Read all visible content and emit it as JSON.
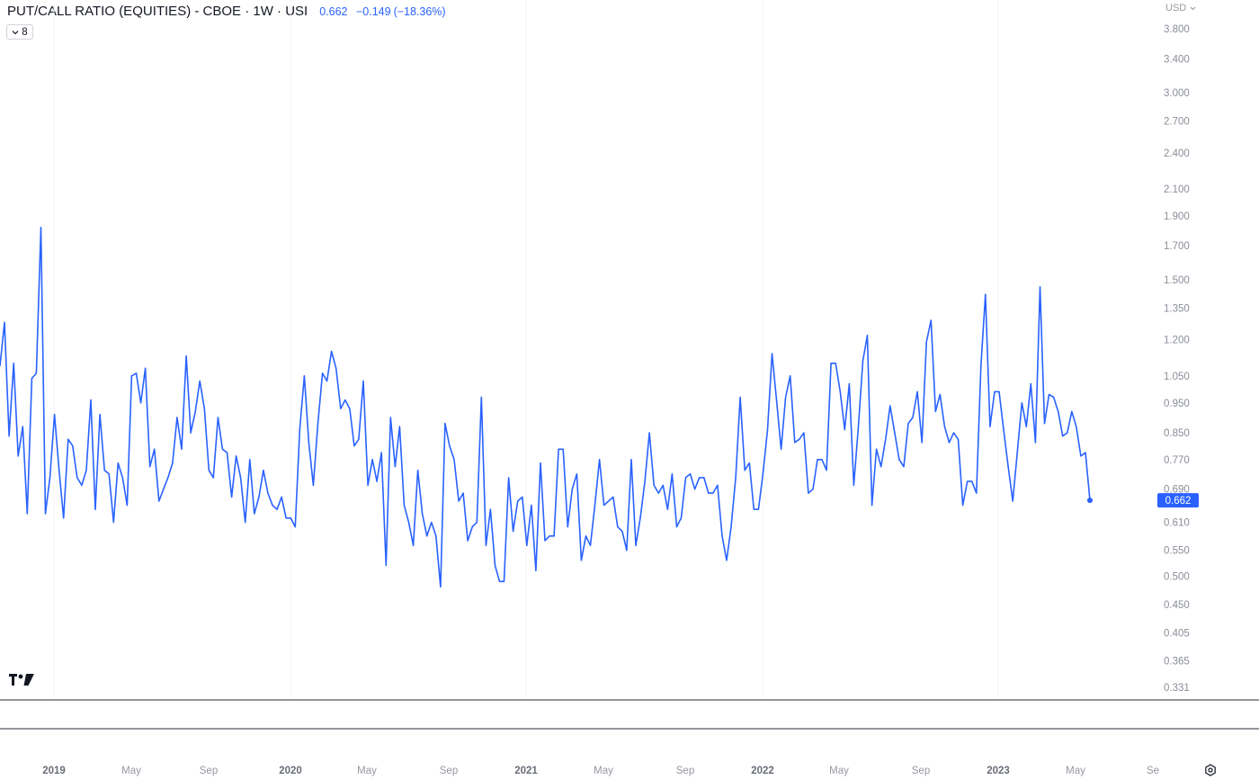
{
  "header": {
    "title": "PUT/CALL RATIO (EQUITIES) - CBOE · 1W · USI",
    "last": "0.662",
    "change": "−0.149",
    "change_pct": "(−18.36%)",
    "indicator_count": "8",
    "currency": "USD"
  },
  "colors": {
    "line": "#2962ff",
    "accent": "#2962ff"
  },
  "icons": {
    "logo": "tradingview-logo-icon",
    "settings": "settings-gear-icon",
    "dropdown": "chevron-down-icon"
  },
  "chart_data": {
    "type": "line",
    "title": "PUT/CALL RATIO (EQUITIES) - CBOE · 1W · USI",
    "scale": "log",
    "ylim": [
      0.315,
      4.0
    ],
    "y_ticks": [
      "3.800",
      "3.400",
      "3.000",
      "2.700",
      "2.400",
      "2.100",
      "1.900",
      "1.700",
      "1.500",
      "1.350",
      "1.200",
      "1.050",
      "0.950",
      "0.850",
      "0.770",
      "0.690",
      "0.610",
      "0.550",
      "0.500",
      "0.450",
      "0.405",
      "0.365",
      "0.331"
    ],
    "x_ticks": [
      {
        "label": "2019",
        "year": true
      },
      {
        "label": "May",
        "year": false
      },
      {
        "label": "Sep",
        "year": false
      },
      {
        "label": "2020",
        "year": true
      },
      {
        "label": "May",
        "year": false
      },
      {
        "label": "Sep",
        "year": false
      },
      {
        "label": "2021",
        "year": true
      },
      {
        "label": "May",
        "year": false
      },
      {
        "label": "Sep",
        "year": false
      },
      {
        "label": "2022",
        "year": true
      },
      {
        "label": "May",
        "year": false
      },
      {
        "label": "Sep",
        "year": false
      },
      {
        "label": "2023",
        "year": true
      },
      {
        "label": "May",
        "year": false
      },
      {
        "label": "Se",
        "year": false
      }
    ],
    "last_value": "0.662",
    "series": [
      {
        "values": [
          1.09,
          1.28,
          0.84,
          1.1,
          0.78,
          0.87,
          0.63,
          1.04,
          1.06,
          1.82,
          0.63,
          0.72,
          0.91,
          0.74,
          0.62,
          0.83,
          0.81,
          0.72,
          0.7,
          0.74,
          0.96,
          0.64,
          0.91,
          0.74,
          0.73,
          0.61,
          0.76,
          0.72,
          0.65,
          1.05,
          1.06,
          0.95,
          1.08,
          0.75,
          0.8,
          0.66,
          0.69,
          0.72,
          0.76,
          0.9,
          0.8,
          1.13,
          0.85,
          0.92,
          1.03,
          0.93,
          0.74,
          0.72,
          0.9,
          0.8,
          0.79,
          0.67,
          0.78,
          0.72,
          0.61,
          0.77,
          0.63,
          0.67,
          0.74,
          0.68,
          0.65,
          0.64,
          0.67,
          0.62,
          0.62,
          0.6,
          0.86,
          1.05,
          0.82,
          0.7,
          0.88,
          1.06,
          1.03,
          1.15,
          1.08,
          0.93,
          0.96,
          0.93,
          0.81,
          0.83,
          1.03,
          0.7,
          0.77,
          0.71,
          0.79,
          0.52,
          0.9,
          0.75,
          0.87,
          0.65,
          0.61,
          0.56,
          0.74,
          0.63,
          0.58,
          0.61,
          0.58,
          0.48,
          0.88,
          0.81,
          0.77,
          0.66,
          0.68,
          0.57,
          0.6,
          0.61,
          0.97,
          0.56,
          0.64,
          0.52,
          0.49,
          0.49,
          0.72,
          0.59,
          0.66,
          0.67,
          0.56,
          0.65,
          0.51,
          0.76,
          0.57,
          0.58,
          0.58,
          0.8,
          0.8,
          0.6,
          0.69,
          0.73,
          0.53,
          0.58,
          0.56,
          0.65,
          0.77,
          0.65,
          0.66,
          0.67,
          0.6,
          0.59,
          0.55,
          0.77,
          0.56,
          0.62,
          0.71,
          0.85,
          0.7,
          0.68,
          0.7,
          0.64,
          0.73,
          0.6,
          0.62,
          0.72,
          0.73,
          0.69,
          0.72,
          0.72,
          0.68,
          0.68,
          0.7,
          0.58,
          0.53,
          0.6,
          0.72,
          0.97,
          0.74,
          0.76,
          0.64,
          0.64,
          0.73,
          0.86,
          1.14,
          0.96,
          0.8,
          0.97,
          1.05,
          0.82,
          0.83,
          0.85,
          0.68,
          0.69,
          0.77,
          0.77,
          0.74,
          1.1,
          1.1,
          0.99,
          0.86,
          1.02,
          0.7,
          0.87,
          1.11,
          1.22,
          0.65,
          0.8,
          0.75,
          0.83,
          0.94,
          0.85,
          0.77,
          0.75,
          0.88,
          0.9,
          0.99,
          0.82,
          1.19,
          1.29,
          0.92,
          0.98,
          0.87,
          0.82,
          0.85,
          0.83,
          0.65,
          0.71,
          0.71,
          0.68,
          1.09,
          1.42,
          0.87,
          0.99,
          0.99,
          0.86,
          0.75,
          0.66,
          0.79,
          0.95,
          0.87,
          1.02,
          0.82,
          1.46,
          0.88,
          0.98,
          0.97,
          0.92,
          0.84,
          0.85,
          0.92,
          0.87,
          0.78,
          0.79,
          0.662
        ]
      }
    ]
  }
}
